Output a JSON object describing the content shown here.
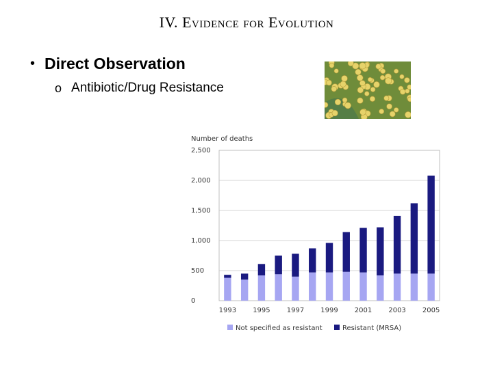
{
  "slide": {
    "title": "IV. Evidence for Evolution",
    "bullet": "Direct Observation",
    "sub_marker": "o",
    "sub_bullet": "Antibiotic/Drug Resistance"
  },
  "image": {
    "icon": "bacteria-micrograph"
  },
  "chart_data": {
    "type": "bar",
    "stacked": true,
    "ylabel": "Number of deaths",
    "ylim": [
      0,
      2500
    ],
    "yticks": [
      0,
      500,
      1000,
      1500,
      2000,
      2500
    ],
    "ytick_labels": [
      "0",
      "500",
      "1,000",
      "1,500",
      "2,000",
      "2,500"
    ],
    "categories": [
      "1993",
      "1994",
      "1995",
      "1996",
      "1997",
      "1998",
      "1999",
      "2000",
      "2001",
      "2002",
      "2003",
      "2004",
      "2005"
    ],
    "xtick_labels": [
      "1993",
      "",
      "1995",
      "",
      "1997",
      "",
      "1999",
      "",
      "2001",
      "",
      "2003",
      "",
      "2005"
    ],
    "series": [
      {
        "name": "Not specified as resistant",
        "color": "#a6a6f2",
        "values": [
          380,
          350,
          420,
          440,
          400,
          470,
          470,
          480,
          470,
          420,
          450,
          450,
          450
        ]
      },
      {
        "name": "Resistant (MRSA)",
        "color": "#1a1a80",
        "values": [
          50,
          100,
          190,
          310,
          380,
          400,
          490,
          660,
          740,
          800,
          960,
          1170,
          1630
        ]
      }
    ],
    "grid": true,
    "legend_position": "bottom"
  }
}
